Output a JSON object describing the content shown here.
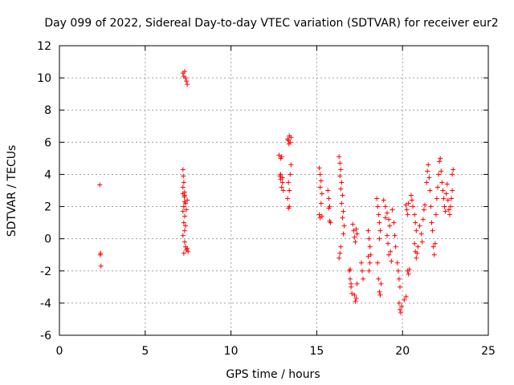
{
  "chart_data": {
    "type": "scatter",
    "title": "Day 099 of 2022, Sidereal Day-to-day VTEC variation (SDTVAR) for receiver eur2",
    "xlabel": "GPS time / hours",
    "ylabel": "SDTVAR / TECUs",
    "xlim": [
      0,
      25
    ],
    "ylim": [
      -6,
      12
    ],
    "xticks": [
      "0",
      "5",
      "10",
      "15",
      "20",
      "25"
    ],
    "yticks": [
      "-6",
      "-4",
      "-2",
      "0",
      "2",
      "4",
      "6",
      "8",
      "10",
      "12"
    ],
    "grid": true,
    "marker": "+",
    "color": "#ff0000",
    "series": [
      {
        "name": "SDTVAR",
        "points": [
          [
            2.35,
            3.35
          ],
          [
            2.4,
            -0.9
          ],
          [
            2.38,
            -1.0
          ],
          [
            2.42,
            -1.7
          ],
          [
            7.2,
            10.3
          ],
          [
            7.25,
            10.1
          ],
          [
            7.3,
            10.4
          ],
          [
            7.35,
            10.0
          ],
          [
            7.4,
            9.8
          ],
          [
            7.45,
            9.6
          ],
          [
            7.2,
            4.3
          ],
          [
            7.22,
            3.9
          ],
          [
            7.25,
            3.5
          ],
          [
            7.2,
            3.2
          ],
          [
            7.3,
            2.9
          ],
          [
            7.28,
            2.6
          ],
          [
            7.3,
            2.3
          ],
          [
            7.25,
            2.0
          ],
          [
            7.2,
            1.7
          ],
          [
            7.3,
            1.4
          ],
          [
            7.25,
            1.0
          ],
          [
            7.35,
            0.8
          ],
          [
            7.3,
            0.5
          ],
          [
            7.2,
            0.2
          ],
          [
            7.3,
            -0.2
          ],
          [
            7.35,
            -0.5
          ],
          [
            7.4,
            -0.7
          ],
          [
            7.25,
            -0.9
          ],
          [
            7.45,
            -0.6
          ],
          [
            7.5,
            -0.8
          ],
          [
            7.3,
            2.7
          ],
          [
            7.35,
            2.2
          ],
          [
            7.4,
            1.8
          ],
          [
            7.45,
            2.4
          ],
          [
            7.2,
            2.8
          ],
          [
            12.8,
            5.2
          ],
          [
            12.9,
            5.0
          ],
          [
            12.95,
            5.1
          ],
          [
            12.85,
            3.9
          ],
          [
            12.9,
            3.7
          ],
          [
            13.0,
            3.5
          ],
          [
            12.95,
            3.2
          ],
          [
            13.05,
            3.0
          ],
          [
            13.0,
            3.8
          ],
          [
            12.9,
            4.0
          ],
          [
            13.3,
            6.2
          ],
          [
            13.35,
            6.1
          ],
          [
            13.4,
            6.4
          ],
          [
            13.5,
            6.3
          ],
          [
            13.45,
            6.0
          ],
          [
            13.38,
            5.9
          ],
          [
            13.5,
            4.6
          ],
          [
            13.45,
            4.0
          ],
          [
            13.35,
            3.5
          ],
          [
            13.4,
            3.0
          ],
          [
            13.3,
            2.5
          ],
          [
            13.4,
            2.0
          ],
          [
            13.35,
            1.9
          ],
          [
            15.15,
            4.4
          ],
          [
            15.2,
            4.0
          ],
          [
            15.25,
            3.6
          ],
          [
            15.2,
            3.2
          ],
          [
            15.3,
            2.8
          ],
          [
            15.25,
            2.2
          ],
          [
            15.15,
            1.5
          ],
          [
            15.2,
            1.3
          ],
          [
            15.3,
            1.4
          ],
          [
            15.65,
            3.0
          ],
          [
            15.7,
            2.5
          ],
          [
            15.75,
            2.0
          ],
          [
            15.7,
            1.9
          ],
          [
            15.75,
            1.1
          ],
          [
            15.8,
            1.0
          ],
          [
            16.3,
            5.1
          ],
          [
            16.35,
            4.7
          ],
          [
            16.4,
            4.3
          ],
          [
            16.35,
            3.9
          ],
          [
            16.45,
            3.5
          ],
          [
            16.4,
            3.1
          ],
          [
            16.5,
            2.7
          ],
          [
            16.45,
            2.2
          ],
          [
            16.55,
            1.7
          ],
          [
            16.5,
            1.3
          ],
          [
            16.6,
            0.8
          ],
          [
            16.55,
            0.3
          ],
          [
            16.4,
            -0.5
          ],
          [
            16.35,
            -0.9
          ],
          [
            16.3,
            -1.2
          ],
          [
            16.9,
            -2.0
          ],
          [
            16.95,
            -2.5
          ],
          [
            17.0,
            -3.0
          ],
          [
            17.05,
            -3.4
          ],
          [
            17.0,
            -2.8
          ],
          [
            16.95,
            -1.9
          ],
          [
            17.1,
            0.9
          ],
          [
            17.15,
            0.5
          ],
          [
            17.2,
            0.1
          ],
          [
            17.25,
            -0.2
          ],
          [
            17.3,
            0.6
          ],
          [
            17.35,
            0.3
          ],
          [
            17.2,
            -3.5
          ],
          [
            17.25,
            -3.9
          ],
          [
            17.3,
            -3.7
          ],
          [
            17.35,
            -2.8
          ],
          [
            17.6,
            -1.5
          ],
          [
            17.65,
            -2.0
          ],
          [
            17.7,
            -2.5
          ],
          [
            18.0,
            0.5
          ],
          [
            18.05,
            0.0
          ],
          [
            18.1,
            -0.5
          ],
          [
            18.15,
            -1.0
          ],
          [
            18.1,
            -1.5
          ],
          [
            18.05,
            -2.0
          ],
          [
            18.0,
            -1.1
          ],
          [
            18.5,
            2.5
          ],
          [
            18.55,
            2.0
          ],
          [
            18.6,
            1.5
          ],
          [
            18.65,
            1.0
          ],
          [
            18.7,
            0.5
          ],
          [
            18.65,
            0.0
          ],
          [
            18.55,
            -1.5
          ],
          [
            18.6,
            -2.5
          ],
          [
            18.65,
            -3.3
          ],
          [
            18.7,
            -3.5
          ],
          [
            18.75,
            -2.8
          ],
          [
            18.9,
            2.4
          ],
          [
            19.0,
            2.0
          ],
          [
            19.1,
            1.6
          ],
          [
            19.2,
            1.2
          ],
          [
            19.25,
            0.8
          ],
          [
            19.1,
            0.2
          ],
          [
            19.15,
            -0.3
          ],
          [
            19.3,
            -0.8
          ],
          [
            19.35,
            -1.4
          ],
          [
            19.2,
            -1.0
          ],
          [
            19.0,
            1.3
          ],
          [
            19.4,
            1.8
          ],
          [
            19.5,
            1.0
          ],
          [
            19.55,
            0.2
          ],
          [
            19.6,
            -0.5
          ],
          [
            19.7,
            -1.5
          ],
          [
            19.75,
            -2.0
          ],
          [
            19.8,
            -2.5
          ],
          [
            19.85,
            -3.0
          ],
          [
            19.8,
            -4.0
          ],
          [
            19.85,
            -4.4
          ],
          [
            19.9,
            -4.6
          ],
          [
            19.95,
            -4.2
          ],
          [
            20.1,
            -3.8
          ],
          [
            20.2,
            -3.6
          ],
          [
            20.2,
            2.1
          ],
          [
            20.25,
            1.8
          ],
          [
            20.3,
            1.5
          ],
          [
            20.35,
            2.2
          ],
          [
            20.3,
            -2.0
          ],
          [
            20.35,
            -2.2
          ],
          [
            20.4,
            -1.9
          ],
          [
            20.5,
            2.7
          ],
          [
            20.55,
            2.4
          ],
          [
            20.6,
            2.0
          ],
          [
            20.7,
            1.5
          ],
          [
            20.75,
            1.0
          ],
          [
            20.8,
            0.5
          ],
          [
            20.7,
            -0.3
          ],
          [
            20.75,
            -0.8
          ],
          [
            20.8,
            -1.2
          ],
          [
            20.85,
            -0.9
          ],
          [
            20.9,
            -0.5
          ],
          [
            21.0,
            0.8
          ],
          [
            21.1,
            0.3
          ],
          [
            21.15,
            -0.2
          ],
          [
            21.2,
            1.2
          ],
          [
            21.25,
            1.8
          ],
          [
            21.3,
            2.1
          ],
          [
            21.4,
            3.5
          ],
          [
            21.45,
            4.2
          ],
          [
            21.5,
            4.6
          ],
          [
            21.55,
            3.8
          ],
          [
            21.6,
            3.0
          ],
          [
            21.65,
            2.0
          ],
          [
            21.7,
            1.0
          ],
          [
            21.75,
            0.5
          ],
          [
            21.8,
            -0.5
          ],
          [
            21.85,
            -1.0
          ],
          [
            21.9,
            -0.3
          ],
          [
            21.95,
            1.5
          ],
          [
            22.0,
            2.5
          ],
          [
            22.05,
            3.2
          ],
          [
            22.1,
            4.0
          ],
          [
            22.15,
            4.8
          ],
          [
            22.2,
            5.0
          ],
          [
            22.25,
            4.2
          ],
          [
            22.3,
            3.5
          ],
          [
            22.35,
            3.0
          ],
          [
            22.4,
            2.5
          ],
          [
            22.45,
            2.0
          ],
          [
            22.5,
            1.7
          ],
          [
            22.55,
            2.8
          ],
          [
            22.6,
            3.4
          ],
          [
            22.65,
            2.4
          ],
          [
            22.7,
            1.8
          ],
          [
            22.75,
            1.5
          ],
          [
            22.8,
            2.0
          ],
          [
            22.85,
            2.5
          ],
          [
            22.9,
            3.0
          ],
          [
            22.9,
            4.0
          ],
          [
            22.95,
            4.3
          ]
        ]
      }
    ]
  }
}
